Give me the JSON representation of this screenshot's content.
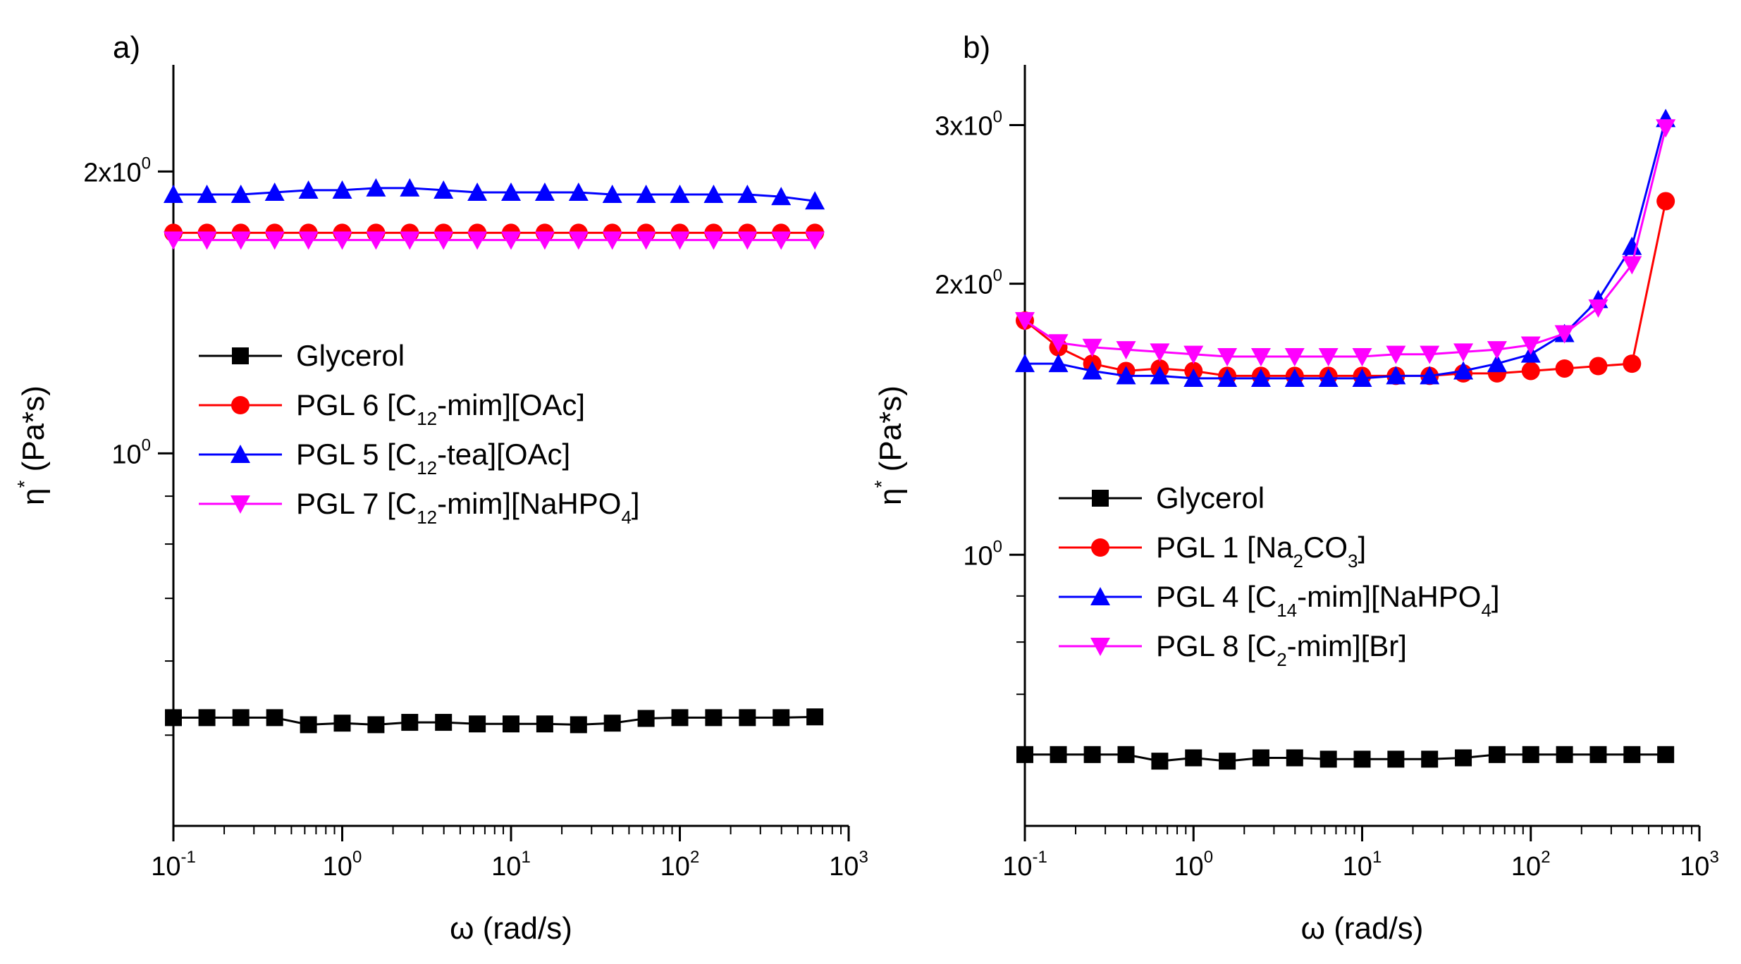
{
  "chart_data": [
    {
      "panel_label": "a)",
      "type": "line",
      "xlabel": "ω (rad/s)",
      "ylabel": "η* (Pa*s)",
      "xscale": "log",
      "yscale": "log",
      "xlim": [
        0.1,
        1000
      ],
      "ylim": [
        0.4,
        2.6
      ],
      "x_ticks": [
        {
          "value": 0.1,
          "base": "10",
          "exp": "-1"
        },
        {
          "value": 1,
          "base": "10",
          "exp": "0"
        },
        {
          "value": 10,
          "base": "10",
          "exp": "1"
        },
        {
          "value": 100,
          "base": "10",
          "exp": "2"
        },
        {
          "value": 1000,
          "base": "10",
          "exp": "3"
        }
      ],
      "y_ticks": [
        {
          "value": 1,
          "mant": "",
          "base": "10",
          "exp": "0"
        },
        {
          "value": 2,
          "mant": "2x",
          "base": "10",
          "exp": "0"
        }
      ],
      "legend_position": "center-left",
      "series": [
        {
          "name": "Glycerol",
          "marker": "square",
          "color": "#000000",
          "x": [
            0.1,
            0.158,
            0.251,
            0.398,
            0.631,
            1,
            1.585,
            2.512,
            3.981,
            6.31,
            10,
            15.85,
            25.12,
            39.81,
            63.1,
            100,
            158.5,
            251.2,
            398.1,
            631
          ],
          "y": [
            0.522,
            0.522,
            0.522,
            0.522,
            0.513,
            0.515,
            0.513,
            0.516,
            0.516,
            0.514,
            0.514,
            0.514,
            0.513,
            0.515,
            0.521,
            0.522,
            0.522,
            0.522,
            0.522,
            0.523
          ]
        },
        {
          "name": "PGL 6 [C12-mim][OAc]",
          "name_parts": [
            "PGL 6  [C",
            "12",
            "-mim][OAc]"
          ],
          "marker": "circle",
          "color": "#ff0000",
          "x": [
            0.1,
            0.158,
            0.251,
            0.398,
            0.631,
            1,
            1.585,
            2.512,
            3.981,
            6.31,
            10,
            15.85,
            25.12,
            39.81,
            63.1,
            100,
            158.5,
            251.2,
            398.1,
            631
          ],
          "y": [
            1.72,
            1.72,
            1.72,
            1.72,
            1.72,
            1.72,
            1.72,
            1.72,
            1.72,
            1.72,
            1.72,
            1.72,
            1.72,
            1.72,
            1.72,
            1.72,
            1.72,
            1.72,
            1.72,
            1.72
          ]
        },
        {
          "name": "PGL 5 [C12-tea][OAc]",
          "name_parts": [
            "PGL 5  [C",
            "12",
            "-tea][OAc]"
          ],
          "marker": "triangle-up",
          "color": "#0000ff",
          "x": [
            0.1,
            0.158,
            0.251,
            0.398,
            0.631,
            1,
            1.585,
            2.512,
            3.981,
            6.31,
            10,
            15.85,
            25.12,
            39.81,
            63.1,
            100,
            158.5,
            251.2,
            398.1,
            631
          ],
          "y": [
            1.89,
            1.89,
            1.89,
            1.9,
            1.91,
            1.91,
            1.92,
            1.92,
            1.91,
            1.9,
            1.9,
            1.9,
            1.9,
            1.89,
            1.89,
            1.89,
            1.89,
            1.89,
            1.88,
            1.86
          ]
        },
        {
          "name": "PGL 7 [C12-mim][NaHPO4]",
          "name_parts": [
            "PGL 7 [C",
            "12",
            "-mim][NaHPO",
            "4",
            "]"
          ],
          "marker": "triangle-down",
          "color": "#ff00ff",
          "x": [
            0.1,
            0.158,
            0.251,
            0.398,
            0.631,
            1,
            1.585,
            2.512,
            3.981,
            6.31,
            10,
            15.85,
            25.12,
            39.81,
            63.1,
            100,
            158.5,
            251.2,
            398.1,
            631
          ],
          "y": [
            1.69,
            1.69,
            1.69,
            1.69,
            1.69,
            1.69,
            1.69,
            1.69,
            1.69,
            1.69,
            1.69,
            1.69,
            1.69,
            1.69,
            1.69,
            1.69,
            1.69,
            1.69,
            1.69,
            1.69
          ]
        }
      ]
    },
    {
      "panel_label": "b)",
      "type": "line",
      "xlabel": "ω (rad/s)",
      "ylabel": "η* (Pa*s)",
      "xscale": "log",
      "yscale": "log",
      "xlim": [
        0.1,
        1000
      ],
      "ylim": [
        0.5,
        3.5
      ],
      "x_ticks": [
        {
          "value": 0.1,
          "base": "10",
          "exp": "-1"
        },
        {
          "value": 1,
          "base": "10",
          "exp": "0"
        },
        {
          "value": 10,
          "base": "10",
          "exp": "1"
        },
        {
          "value": 100,
          "base": "10",
          "exp": "2"
        },
        {
          "value": 1000,
          "base": "10",
          "exp": "3"
        }
      ],
      "y_ticks": [
        {
          "value": 1,
          "mant": "",
          "base": "10",
          "exp": "0"
        },
        {
          "value": 2,
          "mant": "2x",
          "base": "10",
          "exp": "0"
        },
        {
          "value": 3,
          "mant": "3x",
          "base": "10",
          "exp": "0"
        }
      ],
      "legend_position": "center-left",
      "series": [
        {
          "name": "Glycerol",
          "marker": "square",
          "color": "#000000",
          "x": [
            0.1,
            0.158,
            0.251,
            0.398,
            0.631,
            1,
            1.585,
            2.512,
            3.981,
            6.31,
            10,
            15.85,
            25.12,
            39.81,
            63.1,
            100,
            158.5,
            251.2,
            398.1,
            631
          ],
          "y": [
            0.6,
            0.6,
            0.6,
            0.6,
            0.59,
            0.595,
            0.59,
            0.595,
            0.595,
            0.593,
            0.593,
            0.593,
            0.593,
            0.595,
            0.6,
            0.6,
            0.6,
            0.6,
            0.6,
            0.6
          ]
        },
        {
          "name": "PGL 1 [Na2CO3]",
          "name_parts": [
            "PGL 1  [Na",
            "2",
            "CO",
            "3",
            "]"
          ],
          "marker": "circle",
          "color": "#ff0000",
          "x": [
            0.1,
            0.158,
            0.251,
            0.398,
            0.631,
            1,
            1.585,
            2.512,
            3.981,
            6.31,
            10,
            15.85,
            25.12,
            39.81,
            63.1,
            100,
            158.5,
            251.2,
            398.1,
            631
          ],
          "y": [
            1.82,
            1.7,
            1.63,
            1.6,
            1.61,
            1.6,
            1.58,
            1.58,
            1.58,
            1.58,
            1.58,
            1.58,
            1.58,
            1.59,
            1.59,
            1.6,
            1.61,
            1.62,
            1.63,
            2.47
          ]
        },
        {
          "name": "PGL 4 [C14-mim][NaHPO4]",
          "name_parts": [
            "PGL 4  [C",
            "14",
            "-mim][NaHPO",
            "4",
            "]"
          ],
          "marker": "triangle-up",
          "color": "#0000ff",
          "x": [
            0.1,
            0.158,
            0.251,
            0.398,
            0.631,
            1,
            1.585,
            2.512,
            3.981,
            6.31,
            10,
            15.85,
            25.12,
            39.81,
            63.1,
            100,
            158.5,
            251.2,
            398.1,
            631
          ],
          "y": [
            1.63,
            1.63,
            1.6,
            1.58,
            1.58,
            1.57,
            1.57,
            1.57,
            1.57,
            1.57,
            1.57,
            1.58,
            1.58,
            1.6,
            1.63,
            1.67,
            1.76,
            1.92,
            2.2,
            3.05
          ]
        },
        {
          "name": "PGL 8 [C2-mim][Br]",
          "name_parts": [
            "PGL 8  [C",
            "2",
            "-mim][Br]"
          ],
          "marker": "triangle-down",
          "color": "#ff00ff",
          "x": [
            0.1,
            0.158,
            0.251,
            0.398,
            0.631,
            1,
            1.585,
            2.512,
            3.981,
            6.31,
            10,
            15.85,
            25.12,
            39.81,
            63.1,
            100,
            158.5,
            251.2,
            398.1,
            631
          ],
          "y": [
            1.82,
            1.72,
            1.7,
            1.69,
            1.68,
            1.67,
            1.66,
            1.66,
            1.66,
            1.66,
            1.66,
            1.67,
            1.67,
            1.68,
            1.69,
            1.71,
            1.76,
            1.88,
            2.1,
            2.98
          ]
        }
      ]
    }
  ]
}
